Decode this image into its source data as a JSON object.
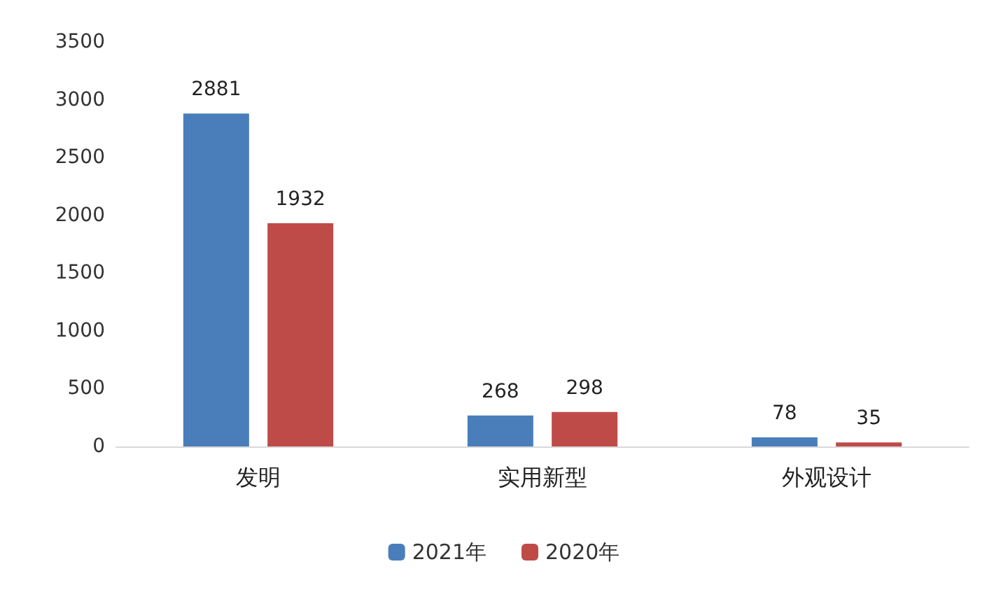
{
  "chart_data": {
    "type": "bar",
    "categories": [
      "发明",
      "实用新型",
      "外观设计"
    ],
    "series": [
      {
        "name": "2021年",
        "color": "#4a7ebb",
        "values": [
          2881,
          268,
          78
        ]
      },
      {
        "name": "2020年",
        "color": "#be4b48",
        "values": [
          1932,
          298,
          35
        ]
      }
    ],
    "ylim": [
      0,
      3500
    ],
    "yticks": [
      0,
      500,
      1000,
      1500,
      2000,
      2500,
      3000,
      3500
    ],
    "grid": false,
    "legend": "bottom",
    "data_labels": true
  }
}
